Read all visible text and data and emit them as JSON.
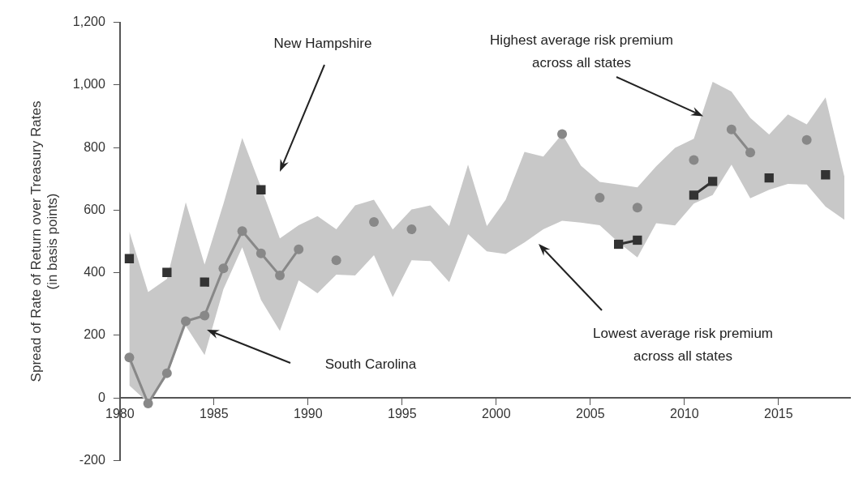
{
  "chart_data": {
    "type": "line",
    "ylabel": "Spread of Rate of Return over Treasury Rates\n(in basis points)",
    "x": [
      1980.5,
      1981.5,
      1982.5,
      1983.5,
      1984.5,
      1985.5,
      1986.5,
      1987.5,
      1988.5,
      1989.5,
      1990.5,
      1991.5,
      1992.5,
      1993.5,
      1994.5,
      1995.5,
      1996.5,
      1997.5,
      1998.5,
      1999.5,
      2000.5,
      2001.5,
      2002.5,
      2003.5,
      2004.5,
      2005.5,
      2006.5,
      2007.5,
      2008.5,
      2009.5,
      2010.5,
      2011.5,
      2012.5,
      2013.5,
      2014.5,
      2015.5,
      2016.5,
      2017.5,
      2018.5
    ],
    "series": [
      {
        "color": "#c8c8c8",
        "marker": "none",
        "values": [
          null,
          null,
          null,
          null,
          null,
          null,
          null,
          null,
          null,
          null,
          null,
          null,
          null,
          null,
          null,
          null,
          null,
          null,
          null,
          null,
          null,
          null,
          null,
          null,
          null,
          null,
          null,
          null,
          null,
          null,
          null,
          null,
          null,
          null,
          null,
          null,
          null,
          null,
          null
        ],
        "upper": [
          532,
          338,
          380,
          625,
          426,
          620,
          831,
          673,
          510,
          552,
          581,
          539,
          615,
          633,
          538,
          602,
          615,
          549,
          745,
          549,
          633,
          786,
          771,
          843,
          742,
          690,
          682,
          673,
          740,
          799,
          828,
          1010,
          979,
          895,
          842,
          906,
          874,
          960,
          707
        ],
        "lower": [
          40,
          -15,
          70,
          230,
          137,
          347,
          481,
          313,
          214,
          376,
          334,
          394,
          391,
          456,
          322,
          440,
          437,
          370,
          523,
          468,
          460,
          497,
          539,
          566,
          560,
          552,
          497,
          449,
          558,
          551,
          621,
          648,
          745,
          638,
          665,
          684,
          682,
          611,
          569
        ]
      },
      {
        "type": "line",
        "color": "#888888",
        "marker": "circle",
        "values": [
          129,
          -18,
          79,
          245,
          263,
          414,
          533,
          462,
          391,
          475,
          null,
          440,
          null,
          562,
          null,
          539,
          null,
          null,
          null,
          null,
          null,
          null,
          null,
          843,
          null,
          640,
          null,
          608,
          null,
          null,
          760,
          null,
          858,
          784,
          null,
          null,
          824,
          null,
          null
        ]
      },
      {
        "type": "line",
        "color": "#333333",
        "marker": "square",
        "values": [
          445,
          null,
          401,
          null,
          370,
          null,
          null,
          665,
          null,
          null,
          null,
          null,
          null,
          null,
          null,
          null,
          null,
          null,
          null,
          null,
          null,
          null,
          null,
          null,
          null,
          null,
          491,
          504,
          null,
          null,
          648,
          692,
          null,
          null,
          703,
          null,
          null,
          713,
          null
        ]
      }
    ],
    "xlim": [
      1980,
      2018.8
    ],
    "xticks": [
      1980,
      1985,
      1990,
      1995,
      2000,
      2005,
      2010,
      2015
    ],
    "ylim": [
      -200,
      1200
    ],
    "yticks": [
      -200,
      0,
      200,
      400,
      600,
      800,
      {
        "value": 1000,
        "label": "1,000"
      },
      {
        "value": 1200,
        "label": "1,200"
      }
    ],
    "annotations": [
      "New Hampshire",
      "South Carolina",
      {
        "text": "Highest average risk premium\nacross all states",
        "x": 2011.0,
        "y": 900
      },
      "Lowest average risk premium\nacross all states"
    ],
    "grid": false,
    "legend": false,
    "line_style": "solid"
  }
}
